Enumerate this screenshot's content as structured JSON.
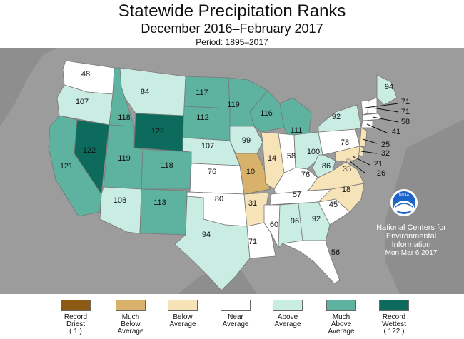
{
  "header": {
    "title": "Statewide Precipitation Ranks",
    "subtitle": "December 2016–February 2017",
    "period": "Period: 1895–2017"
  },
  "colors": {
    "record_driest": "#8c5a12",
    "much_below": "#d8b26a",
    "below": "#f6e3b8",
    "near": "#ffffff",
    "above": "#c9ece3",
    "much_above": "#5db39f",
    "record_wettest": "#0c6b5c",
    "background": "#9c9c9c"
  },
  "states": [
    {
      "id": "WA",
      "rank": "48"
    },
    {
      "id": "OR",
      "rank": "107"
    },
    {
      "id": "CA",
      "rank": "121"
    },
    {
      "id": "NV",
      "rank": "122"
    },
    {
      "id": "ID",
      "rank": "118"
    },
    {
      "id": "MT",
      "rank": "84"
    },
    {
      "id": "WY",
      "rank": "122"
    },
    {
      "id": "UT",
      "rank": "119"
    },
    {
      "id": "AZ",
      "rank": "108"
    },
    {
      "id": "CO",
      "rank": "118"
    },
    {
      "id": "NM",
      "rank": "113"
    },
    {
      "id": "ND",
      "rank": "117"
    },
    {
      "id": "SD",
      "rank": "112"
    },
    {
      "id": "NE",
      "rank": "107"
    },
    {
      "id": "KS",
      "rank": "76"
    },
    {
      "id": "OK",
      "rank": "80"
    },
    {
      "id": "TX",
      "rank": "94"
    },
    {
      "id": "MN",
      "rank": "119"
    },
    {
      "id": "IA",
      "rank": "99"
    },
    {
      "id": "MO",
      "rank": "10"
    },
    {
      "id": "AR",
      "rank": "31"
    },
    {
      "id": "LA",
      "rank": "71"
    },
    {
      "id": "WI",
      "rank": "116"
    },
    {
      "id": "IL",
      "rank": "14"
    },
    {
      "id": "MI",
      "rank": "111"
    },
    {
      "id": "IN",
      "rank": "58"
    },
    {
      "id": "OH",
      "rank": "100"
    },
    {
      "id": "KY",
      "rank": "76"
    },
    {
      "id": "TN",
      "rank": "57"
    },
    {
      "id": "MS",
      "rank": "60"
    },
    {
      "id": "AL",
      "rank": "96"
    },
    {
      "id": "GA",
      "rank": "92"
    },
    {
      "id": "FL",
      "rank": "56"
    },
    {
      "id": "SC",
      "rank": "45"
    },
    {
      "id": "NC",
      "rank": "18"
    },
    {
      "id": "VA",
      "rank": "35"
    },
    {
      "id": "WV",
      "rank": "86"
    },
    {
      "id": "PA",
      "rank": "78"
    },
    {
      "id": "NY",
      "rank": "92"
    },
    {
      "id": "ME",
      "rank": "94"
    },
    {
      "id": "VT",
      "rank": "71"
    },
    {
      "id": "NH",
      "rank": "71"
    },
    {
      "id": "MA",
      "rank": "58"
    },
    {
      "id": "CT",
      "rank": "41"
    },
    {
      "id": "NJ",
      "rank": "25"
    },
    {
      "id": "DE",
      "rank": "32"
    },
    {
      "id": "MD",
      "rank": "21"
    },
    {
      "id": "DC",
      "rank": "26"
    }
  ],
  "ncei": {
    "line1": "National Centers for",
    "line2": "Environmental",
    "line3": "Information",
    "date": "Mon Mar  6 2017"
  },
  "noaa_logo_text": "NOAA",
  "legend": [
    {
      "line1": "Record",
      "line2": "Driest",
      "line3": "( 1 )",
      "color": "#8c5a12"
    },
    {
      "line1": "Much",
      "line2": "Below",
      "line3": "Average",
      "color": "#d8b26a"
    },
    {
      "line1": "Below",
      "line2": "Average",
      "line3": "",
      "color": "#f6e3b8"
    },
    {
      "line1": "Near",
      "line2": "Average",
      "line3": "",
      "color": "#ffffff"
    },
    {
      "line1": "Above",
      "line2": "Average",
      "line3": "",
      "color": "#c9ece3"
    },
    {
      "line1": "Much",
      "line2": "Above",
      "line3": "Average",
      "color": "#5db39f"
    },
    {
      "line1": "Record",
      "line2": "Wettest",
      "line3": "( 122 )",
      "color": "#0c6b5c"
    }
  ]
}
